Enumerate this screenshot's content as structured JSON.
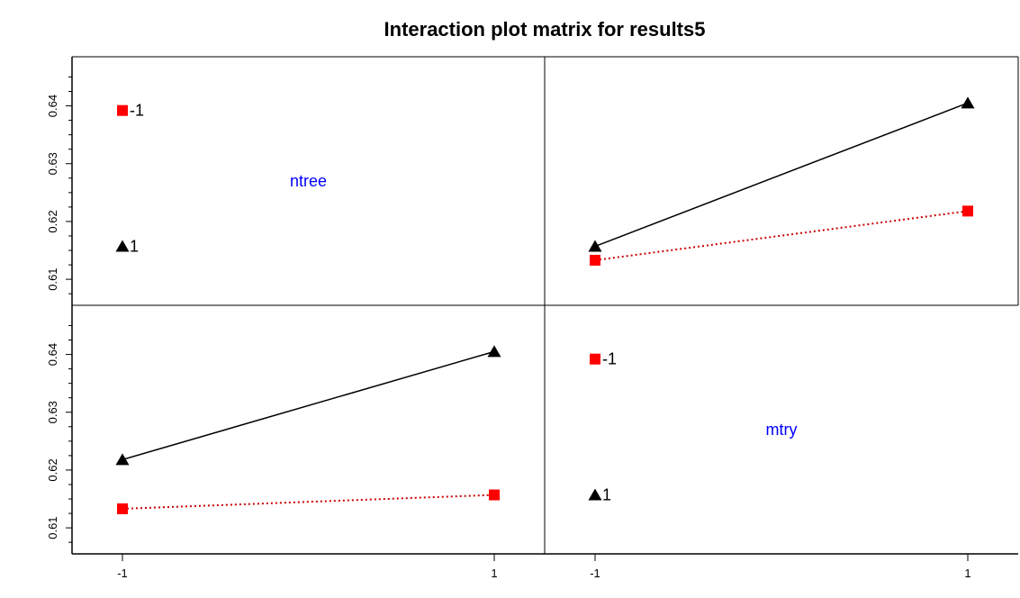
{
  "chart_data": {
    "type": "line",
    "title": "Interaction plot matrix for results5",
    "factor_label_color": "#0000ff",
    "series_styles": [
      {
        "level": "-1",
        "color": "#ff0000",
        "marker": "square",
        "line": "dotted",
        "line_color": "#cc0000"
      },
      {
        "level": "1",
        "color": "#000000",
        "marker": "triangle",
        "line": "solid",
        "line_color": "#000000"
      }
    ],
    "x_ticks": [
      "-1",
      "1"
    ],
    "y_ticks": [
      "0.61",
      "0.62",
      "0.63",
      "0.64"
    ],
    "ylim": [
      0.6055,
      0.6485
    ],
    "panels": [
      {
        "position": "top-left",
        "kind": "main-effect",
        "factor": "ntree",
        "x": [
          "-1"
        ],
        "points": [
          {
            "level": "-1",
            "y": 0.6392
          },
          {
            "level": "1",
            "y": 0.6157
          }
        ]
      },
      {
        "position": "top-right",
        "kind": "interaction",
        "x": [
          "-1",
          "1"
        ],
        "series": [
          {
            "level": "1",
            "values": [
              0.6157,
              0.6405
            ]
          },
          {
            "level": "-1",
            "values": [
              0.6133,
              0.6218
            ]
          }
        ]
      },
      {
        "position": "bottom-left",
        "kind": "interaction",
        "x": [
          "-1",
          "1"
        ],
        "series": [
          {
            "level": "1",
            "values": [
              0.6218,
              0.6405
            ]
          },
          {
            "level": "-1",
            "values": [
              0.6133,
              0.6157
            ]
          }
        ]
      },
      {
        "position": "bottom-right",
        "kind": "main-effect",
        "factor": "mtry",
        "x": [
          "-1"
        ],
        "points": [
          {
            "level": "-1",
            "y": 0.6392
          },
          {
            "level": "1",
            "y": 0.6157
          }
        ]
      }
    ]
  }
}
